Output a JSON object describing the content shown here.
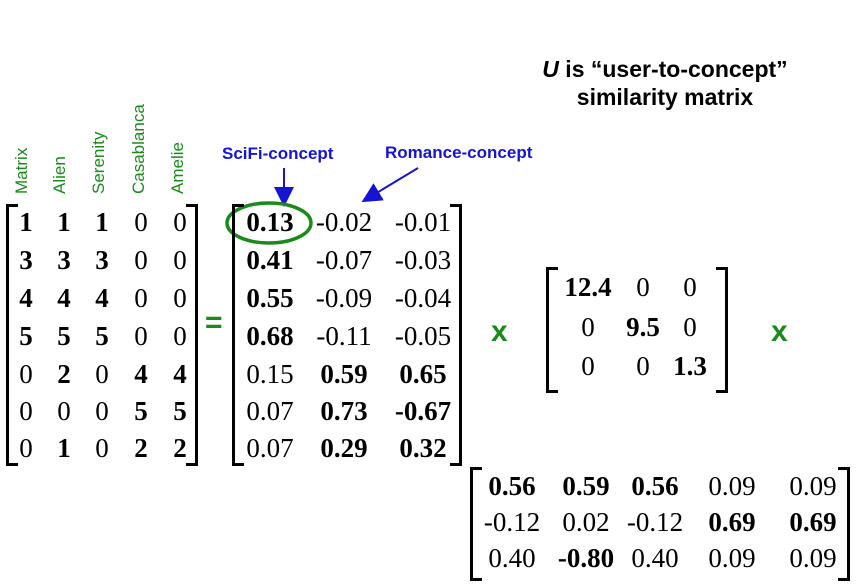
{
  "title": {
    "u_letter": "U",
    "rest_line1": " is “user-to-concept”",
    "line2": "similarity matrix"
  },
  "column_headers": [
    "Matrix",
    "Alien",
    "Serenity",
    "Casablanca",
    "Amelie"
  ],
  "concept_labels": {
    "scifi": "SciFi-concept",
    "romance": "Romance-concept"
  },
  "operators": {
    "equals": "=",
    "times1": "x",
    "times2": "x"
  },
  "colors": {
    "green": "#1a8a1a",
    "blue": "#1414d2",
    "black": "#000000"
  },
  "matrix_A": [
    [
      {
        "v": "1",
        "b": true
      },
      {
        "v": "1",
        "b": true
      },
      {
        "v": "1",
        "b": true
      },
      {
        "v": "0",
        "b": false
      },
      {
        "v": "0",
        "b": false
      }
    ],
    [
      {
        "v": "3",
        "b": true
      },
      {
        "v": "3",
        "b": true
      },
      {
        "v": "3",
        "b": true
      },
      {
        "v": "0",
        "b": false
      },
      {
        "v": "0",
        "b": false
      }
    ],
    [
      {
        "v": "4",
        "b": true
      },
      {
        "v": "4",
        "b": true
      },
      {
        "v": "4",
        "b": true
      },
      {
        "v": "0",
        "b": false
      },
      {
        "v": "0",
        "b": false
      }
    ],
    [
      {
        "v": "5",
        "b": true
      },
      {
        "v": "5",
        "b": true
      },
      {
        "v": "5",
        "b": true
      },
      {
        "v": "0",
        "b": false
      },
      {
        "v": "0",
        "b": false
      }
    ],
    [
      {
        "v": "0",
        "b": false
      },
      {
        "v": "2",
        "b": true
      },
      {
        "v": "0",
        "b": false
      },
      {
        "v": "4",
        "b": true
      },
      {
        "v": "4",
        "b": true
      }
    ],
    [
      {
        "v": "0",
        "b": false
      },
      {
        "v": "0",
        "b": false
      },
      {
        "v": "0",
        "b": false
      },
      {
        "v": "5",
        "b": true
      },
      {
        "v": "5",
        "b": true
      }
    ],
    [
      {
        "v": "0",
        "b": false
      },
      {
        "v": "1",
        "b": true
      },
      {
        "v": "0",
        "b": false
      },
      {
        "v": "2",
        "b": true
      },
      {
        "v": "2",
        "b": true
      }
    ]
  ],
  "matrix_U": [
    [
      {
        "v": "0.13",
        "b": true
      },
      {
        "v": "-0.02",
        "b": false
      },
      {
        "v": "-0.01",
        "b": false
      }
    ],
    [
      {
        "v": "0.41",
        "b": true
      },
      {
        "v": "-0.07",
        "b": false
      },
      {
        "v": "-0.03",
        "b": false
      }
    ],
    [
      {
        "v": "0.55",
        "b": true
      },
      {
        "v": "-0.09",
        "b": false
      },
      {
        "v": "-0.04",
        "b": false
      }
    ],
    [
      {
        "v": "0.68",
        "b": true
      },
      {
        "v": "-0.11",
        "b": false
      },
      {
        "v": "-0.05",
        "b": false
      }
    ],
    [
      {
        "v": "0.15",
        "b": false
      },
      {
        "v": "0.59",
        "b": true
      },
      {
        "v": "0.65",
        "b": true
      }
    ],
    [
      {
        "v": "0.07",
        "b": false
      },
      {
        "v": "0.73",
        "b": true
      },
      {
        "v": "-0.67",
        "b": true
      }
    ],
    [
      {
        "v": "0.07",
        "b": false
      },
      {
        "v": "0.29",
        "b": true
      },
      {
        "v": "0.32",
        "b": true
      }
    ]
  ],
  "matrix_S": [
    [
      {
        "v": "12.4",
        "b": true
      },
      {
        "v": "0",
        "b": false
      },
      {
        "v": "0",
        "b": false
      }
    ],
    [
      {
        "v": "0",
        "b": false
      },
      {
        "v": "9.5",
        "b": true
      },
      {
        "v": "0",
        "b": false
      }
    ],
    [
      {
        "v": "0",
        "b": false
      },
      {
        "v": "0",
        "b": false
      },
      {
        "v": "1.3",
        "b": true
      }
    ]
  ],
  "matrix_V": [
    [
      {
        "v": "0.56",
        "b": true
      },
      {
        "v": "0.59",
        "b": true
      },
      {
        "v": "0.56",
        "b": true
      },
      {
        "v": "0.09",
        "b": false
      },
      {
        "v": "0.09",
        "b": false
      }
    ],
    [
      {
        "v": "-0.12",
        "b": false
      },
      {
        "v": "0.02",
        "b": false
      },
      {
        "v": "-0.12",
        "b": false
      },
      {
        "v": "0.69",
        "b": true
      },
      {
        "v": "0.69",
        "b": true
      }
    ],
    [
      {
        "v": "0.40",
        "b": false
      },
      {
        "v": "-0.80",
        "b": true
      },
      {
        "v": "0.40",
        "b": false
      },
      {
        "v": "0.09",
        "b": false
      },
      {
        "v": "0.09",
        "b": false
      }
    ]
  ]
}
